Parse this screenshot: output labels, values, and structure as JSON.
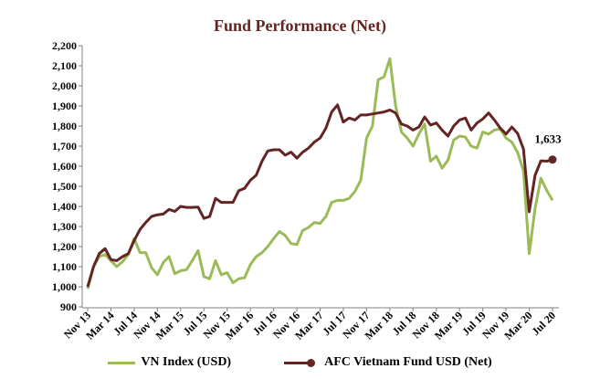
{
  "chart_data": {
    "type": "line",
    "title": "Fund Performance (Net)",
    "xlabel": "",
    "ylabel": "",
    "ylim": [
      900,
      2200
    ],
    "yticks": [
      900,
      1000,
      1100,
      1200,
      1300,
      1400,
      1500,
      1600,
      1700,
      1800,
      1900,
      2000,
      2100,
      2200
    ],
    "ytick_labels": [
      "900",
      "1,000",
      "1,100",
      "1,200",
      "1,300",
      "1,400",
      "1,500",
      "1,600",
      "1,700",
      "1,800",
      "1,900",
      "2,000",
      "2,100",
      "2,200"
    ],
    "x_start": "Nov 13",
    "x_end": "Jul 20",
    "x_frequency": "monthly",
    "xtick_labels": [
      "Nov 13",
      "Mar 14",
      "Jul 14",
      "Nov 14",
      "Mar 15",
      "Jul 15",
      "Nov 15",
      "Mar 16",
      "Jul 16",
      "Nov 16",
      "Mar 17",
      "Jul 17",
      "Nov 17",
      "Mar 18",
      "Jul 18",
      "Nov 18",
      "Mar 19",
      "Jul 19",
      "Nov 19",
      "Mar 20",
      "Jul 20"
    ],
    "grid": false,
    "legend_position": "bottom",
    "series": [
      {
        "name": "VN Index (USD)",
        "color": "#9BBB59",
        "marker_last": false,
        "values": [
          990,
          1100,
          1150,
          1160,
          1130,
          1100,
          1125,
          1160,
          1240,
          1170,
          1170,
          1095,
          1060,
          1120,
          1150,
          1065,
          1080,
          1085,
          1130,
          1180,
          1050,
          1040,
          1130,
          1060,
          1070,
          1020,
          1040,
          1045,
          1110,
          1150,
          1170,
          1200,
          1240,
          1275,
          1255,
          1215,
          1210,
          1280,
          1295,
          1320,
          1315,
          1350,
          1420,
          1430,
          1430,
          1440,
          1475,
          1530,
          1740,
          1800,
          2030,
          2045,
          2135,
          1900,
          1770,
          1740,
          1700,
          1760,
          1810,
          1625,
          1650,
          1590,
          1630,
          1730,
          1750,
          1745,
          1700,
          1690,
          1770,
          1760,
          1780,
          1785,
          1740,
          1720,
          1668,
          1577,
          1165,
          1390,
          1540,
          1480,
          1430
        ]
      },
      {
        "name": "AFC Vietnam Fund USD (Net)",
        "color": "#632523",
        "marker_last": true,
        "last_label": "1,633",
        "values": [
          1000,
          1100,
          1165,
          1190,
          1135,
          1130,
          1150,
          1165,
          1230,
          1285,
          1320,
          1350,
          1358,
          1362,
          1385,
          1375,
          1400,
          1395,
          1395,
          1397,
          1340,
          1350,
          1440,
          1420,
          1420,
          1420,
          1478,
          1490,
          1530,
          1555,
          1625,
          1676,
          1682,
          1682,
          1655,
          1670,
          1640,
          1670,
          1690,
          1720,
          1740,
          1790,
          1870,
          1905,
          1820,
          1840,
          1830,
          1855,
          1855,
          1860,
          1865,
          1870,
          1880,
          1865,
          1810,
          1800,
          1780,
          1795,
          1845,
          1805,
          1815,
          1780,
          1750,
          1800,
          1830,
          1840,
          1780,
          1815,
          1835,
          1865,
          1830,
          1790,
          1760,
          1795,
          1763,
          1686,
          1373,
          1555,
          1627,
          1625,
          1633
        ]
      }
    ]
  }
}
